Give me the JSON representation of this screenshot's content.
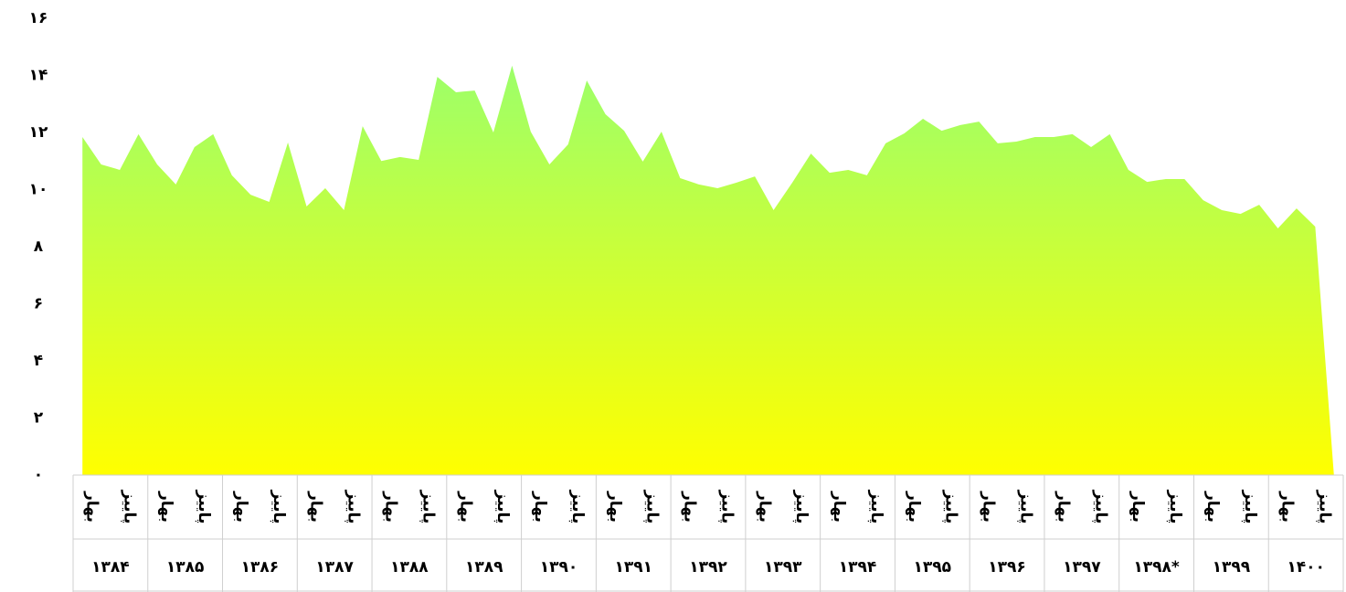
{
  "chart_data": {
    "type": "area",
    "values": [
      11.84,
      10.88,
      10.69,
      11.94,
      10.88,
      10.18,
      11.49,
      11.94,
      10.5,
      9.82,
      9.57,
      11.65,
      9.41,
      10.05,
      9.28,
      12.22,
      11.0,
      11.14,
      11.04,
      13.95,
      13.41,
      13.47,
      12.0,
      14.34,
      12.03,
      10.88,
      11.58,
      13.82,
      12.64,
      12.06,
      10.98,
      12.03,
      10.4,
      10.18,
      10.05,
      10.24,
      10.46,
      9.28,
      10.24,
      11.26,
      10.59,
      10.69,
      10.5,
      11.62,
      11.97,
      12.48,
      12.06,
      12.26,
      12.38,
      11.62,
      11.68,
      11.84,
      11.84,
      11.94,
      11.49,
      11.94,
      10.69,
      10.27,
      10.37,
      10.37,
      9.63,
      9.28,
      9.15,
      9.47,
      8.64,
      9.34,
      8.7,
      0
    ],
    "categories": [
      "بهار",
      null,
      "پاییز",
      null,
      "بهار",
      null,
      "پاییز",
      null,
      "بهار",
      null,
      "پاییز",
      null,
      "بهار",
      null,
      "پاییز",
      null,
      "بهار",
      null,
      "پاییز",
      null,
      "بهار",
      null,
      "پاییز",
      null,
      "بهار",
      null,
      "پاییز",
      null,
      "بهار",
      null,
      "پاییز",
      null,
      "بهار",
      null,
      "پاییز",
      null,
      "بهار",
      null,
      "پاییز",
      null,
      "بهار",
      null,
      "پاییز",
      null,
      "بهار",
      null,
      "پاییز",
      null,
      "بهار",
      null,
      "پاییز",
      null,
      "بهار",
      null,
      "پاییز",
      null,
      "بهار",
      null,
      "پاییز",
      null,
      "بهار",
      null,
      "پاییز",
      null,
      "بهار",
      null,
      "پاییز",
      null
    ],
    "years": [
      "۱۳۸۴",
      "۱۳۸۵",
      "۱۳۸۶",
      "۱۳۸۷",
      "۱۳۸۸",
      "۱۳۸۹",
      "۱۳۹۰",
      "۱۳۹۱",
      "۱۳۹۲",
      "۱۳۹۳",
      "۱۳۹۴",
      "۱۳۹۵",
      "۱۳۹۶",
      "۱۳۹۷",
      "۱۳۹۸*",
      "۱۳۹۹",
      "۱۴۰۰"
    ],
    "ylim": [
      0,
      16
    ],
    "yticks": [
      {
        "value": 0,
        "label": "۰"
      },
      {
        "value": 2,
        "label": "۲"
      },
      {
        "value": 4,
        "label": "۴"
      },
      {
        "value": 6,
        "label": "۶"
      },
      {
        "value": 8,
        "label": "۸"
      },
      {
        "value": 10,
        "label": "۱۰"
      },
      {
        "value": 12,
        "label": "۱۲"
      },
      {
        "value": 14,
        "label": "۱۴"
      },
      {
        "value": 16,
        "label": "۱۶"
      }
    ],
    "gradient": [
      "#9cff6a",
      "#ffff00"
    ]
  }
}
